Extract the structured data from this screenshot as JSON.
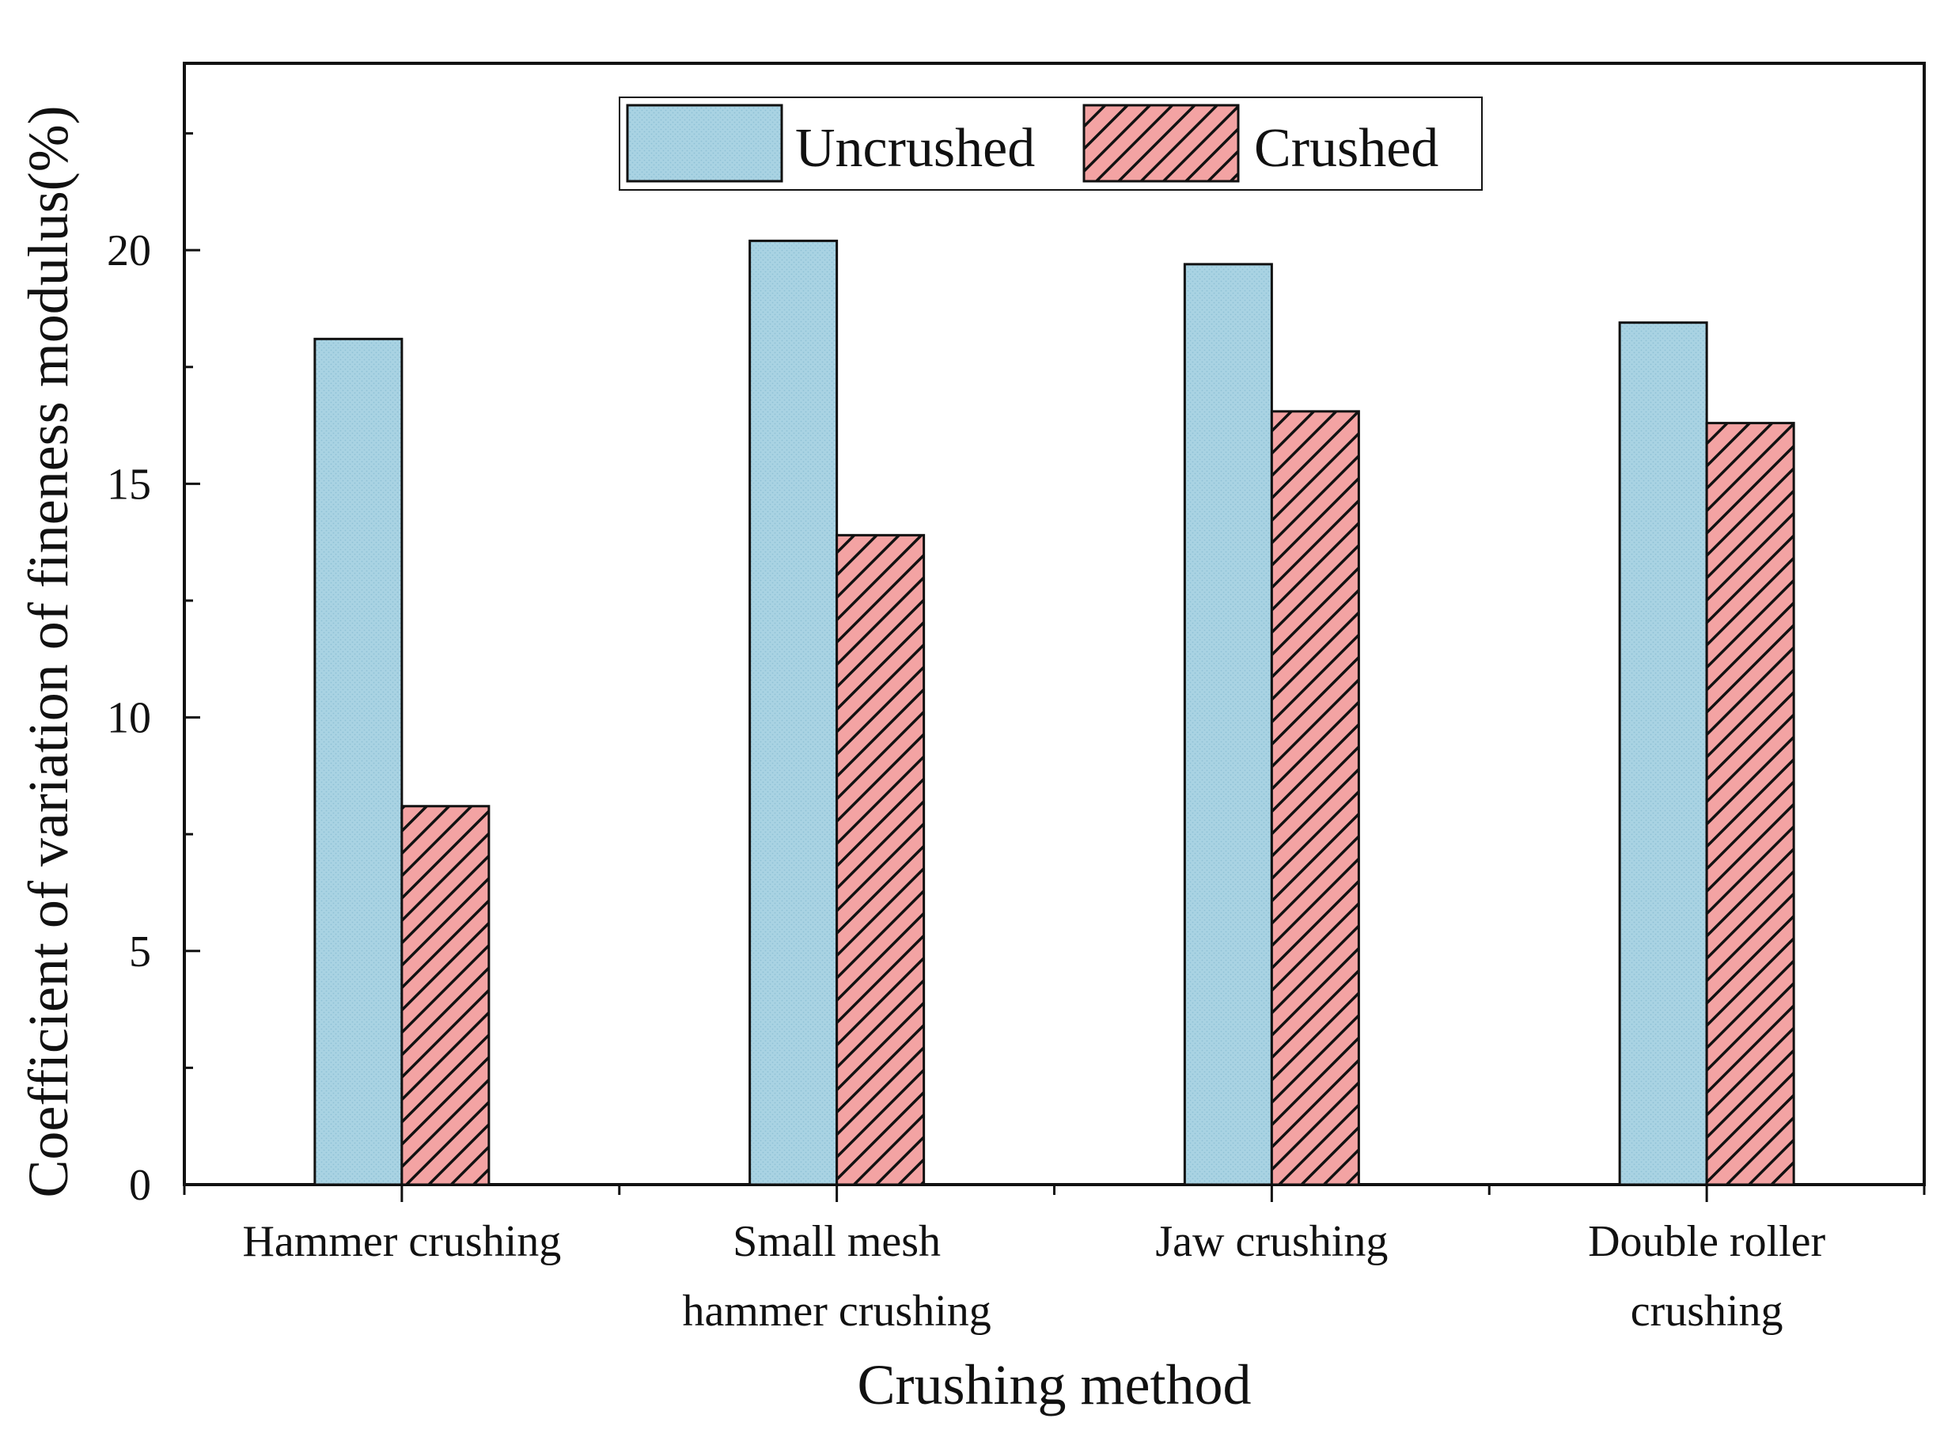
{
  "chart_data": {
    "type": "bar",
    "title": "",
    "xlabel": "Crushing method",
    "ylabel": "Coefficient of variation of fineness modulus(%)",
    "categories": [
      [
        "Hammer crushing"
      ],
      [
        "Small mesh",
        "hammer crushing"
      ],
      [
        "Jaw crushing"
      ],
      [
        "Double roller",
        "crushing"
      ]
    ],
    "series": [
      {
        "name": "Uncrushed",
        "values": [
          18.1,
          20.2,
          19.7,
          18.45
        ],
        "color": "#a9d3e3",
        "pattern": "dotted"
      },
      {
        "name": "Crushed",
        "values": [
          8.1,
          13.9,
          16.55,
          16.3
        ],
        "color": "#f3a3a3",
        "pattern": "hatched"
      }
    ],
    "ylim": [
      0,
      24
    ],
    "yticks": [
      0,
      5,
      10,
      15,
      20
    ],
    "grid": false,
    "legend_position": "top-center"
  }
}
